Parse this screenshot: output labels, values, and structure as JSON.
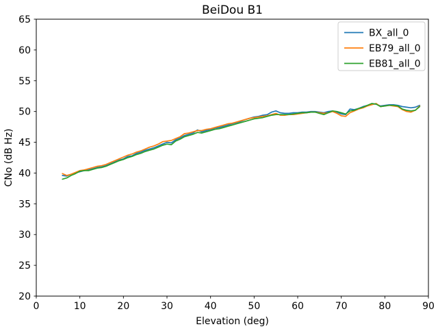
{
  "chart": {
    "title": "BeiDou B1",
    "xlabel": "Elevation (deg)",
    "ylabel": "CNo (dB Hz)"
  },
  "chart_data": {
    "type": "line",
    "title": "BeiDou B1",
    "xlabel": "Elevation (deg)",
    "ylabel": "CNo (dB Hz)",
    "xlim": [
      0,
      90
    ],
    "ylim": [
      20,
      65
    ],
    "xticks": [
      0,
      10,
      20,
      30,
      40,
      50,
      60,
      70,
      80,
      90
    ],
    "yticks": [
      20,
      25,
      30,
      35,
      40,
      45,
      50,
      55,
      60,
      65
    ],
    "grid": false,
    "legend_position": "upper right",
    "x": [
      6,
      7,
      8,
      9,
      10,
      11,
      12,
      13,
      14,
      15,
      16,
      17,
      18,
      19,
      20,
      21,
      22,
      23,
      24,
      25,
      26,
      27,
      28,
      29,
      30,
      31,
      32,
      33,
      34,
      35,
      36,
      37,
      38,
      39,
      40,
      41,
      42,
      43,
      44,
      45,
      46,
      47,
      48,
      49,
      50,
      51,
      52,
      53,
      54,
      55,
      56,
      57,
      58,
      59,
      60,
      61,
      62,
      63,
      64,
      65,
      66,
      67,
      68,
      69,
      70,
      71,
      72,
      73,
      74,
      75,
      76,
      77,
      78,
      79,
      80,
      81,
      82,
      83,
      84,
      85,
      86,
      87,
      88
    ],
    "series": [
      {
        "name": "BX_all_0",
        "color": "#1f77b4",
        "values": [
          39.6,
          39.5,
          39.8,
          40.0,
          40.2,
          40.4,
          40.5,
          40.7,
          40.9,
          41.0,
          41.2,
          41.5,
          41.8,
          42.1,
          42.3,
          42.7,
          42.8,
          43.2,
          43.4,
          43.7,
          43.9,
          44.1,
          44.4,
          44.7,
          45.0,
          44.9,
          45.4,
          45.7,
          46.1,
          46.3,
          46.5,
          47.0,
          46.7,
          46.9,
          47.1,
          47.3,
          47.4,
          47.6,
          47.8,
          48.0,
          48.2,
          48.4,
          48.7,
          48.9,
          49.1,
          49.2,
          49.4,
          49.5,
          49.9,
          50.1,
          49.8,
          49.7,
          49.7,
          49.8,
          49.8,
          49.9,
          49.9,
          50.0,
          50.0,
          49.9,
          49.8,
          50.0,
          50.1,
          49.9,
          49.6,
          49.5,
          50.4,
          50.3,
          50.5,
          50.8,
          51.0,
          51.2,
          51.2,
          50.9,
          51.0,
          51.1,
          51.1,
          51.0,
          50.8,
          50.7,
          50.6,
          50.7,
          51.0
        ]
      },
      {
        "name": "EB79_all_0",
        "color": "#ff7f0e",
        "values": [
          39.9,
          39.6,
          39.8,
          40.1,
          40.4,
          40.5,
          40.7,
          40.9,
          41.1,
          41.2,
          41.4,
          41.7,
          42.0,
          42.3,
          42.6,
          42.9,
          43.1,
          43.4,
          43.6,
          43.9,
          44.2,
          44.4,
          44.7,
          45.1,
          45.2,
          45.3,
          45.6,
          45.9,
          46.4,
          46.5,
          46.7,
          46.9,
          46.9,
          47.1,
          47.2,
          47.4,
          47.6,
          47.8,
          48.0,
          48.1,
          48.3,
          48.5,
          48.7,
          48.9,
          49.0,
          49.1,
          49.2,
          49.3,
          49.5,
          49.7,
          49.4,
          49.4,
          49.5,
          49.5,
          49.6,
          49.7,
          49.8,
          49.9,
          49.9,
          49.8,
          49.7,
          49.8,
          50.0,
          49.7,
          49.3,
          49.2,
          49.8,
          50.1,
          50.4,
          50.6,
          50.9,
          51.1,
          51.3,
          50.8,
          50.9,
          51.0,
          50.9,
          50.8,
          50.3,
          50.0,
          49.9,
          50.2,
          50.9
        ]
      },
      {
        "name": "EB81_all_0",
        "color": "#2ca02c",
        "values": [
          39.0,
          39.2,
          39.6,
          39.9,
          40.3,
          40.4,
          40.4,
          40.6,
          40.8,
          40.9,
          41.1,
          41.4,
          41.7,
          42.0,
          42.2,
          42.5,
          42.7,
          43.0,
          43.2,
          43.5,
          43.7,
          43.9,
          44.2,
          44.5,
          44.7,
          44.6,
          45.2,
          45.5,
          45.9,
          46.1,
          46.3,
          46.6,
          46.5,
          46.7,
          46.9,
          47.1,
          47.2,
          47.4,
          47.6,
          47.8,
          48.0,
          48.2,
          48.4,
          48.6,
          48.8,
          48.9,
          49.0,
          49.2,
          49.4,
          49.5,
          49.5,
          49.5,
          49.5,
          49.6,
          49.7,
          49.8,
          49.8,
          49.9,
          49.9,
          49.7,
          49.5,
          49.8,
          50.1,
          50.0,
          49.8,
          49.6,
          50.1,
          50.2,
          50.5,
          50.7,
          51.0,
          51.3,
          51.2,
          50.8,
          50.9,
          51.0,
          51.0,
          50.9,
          50.4,
          50.2,
          50.1,
          50.2,
          50.8
        ]
      }
    ],
    "axis_color": "#000000",
    "background_color": "#ffffff"
  }
}
